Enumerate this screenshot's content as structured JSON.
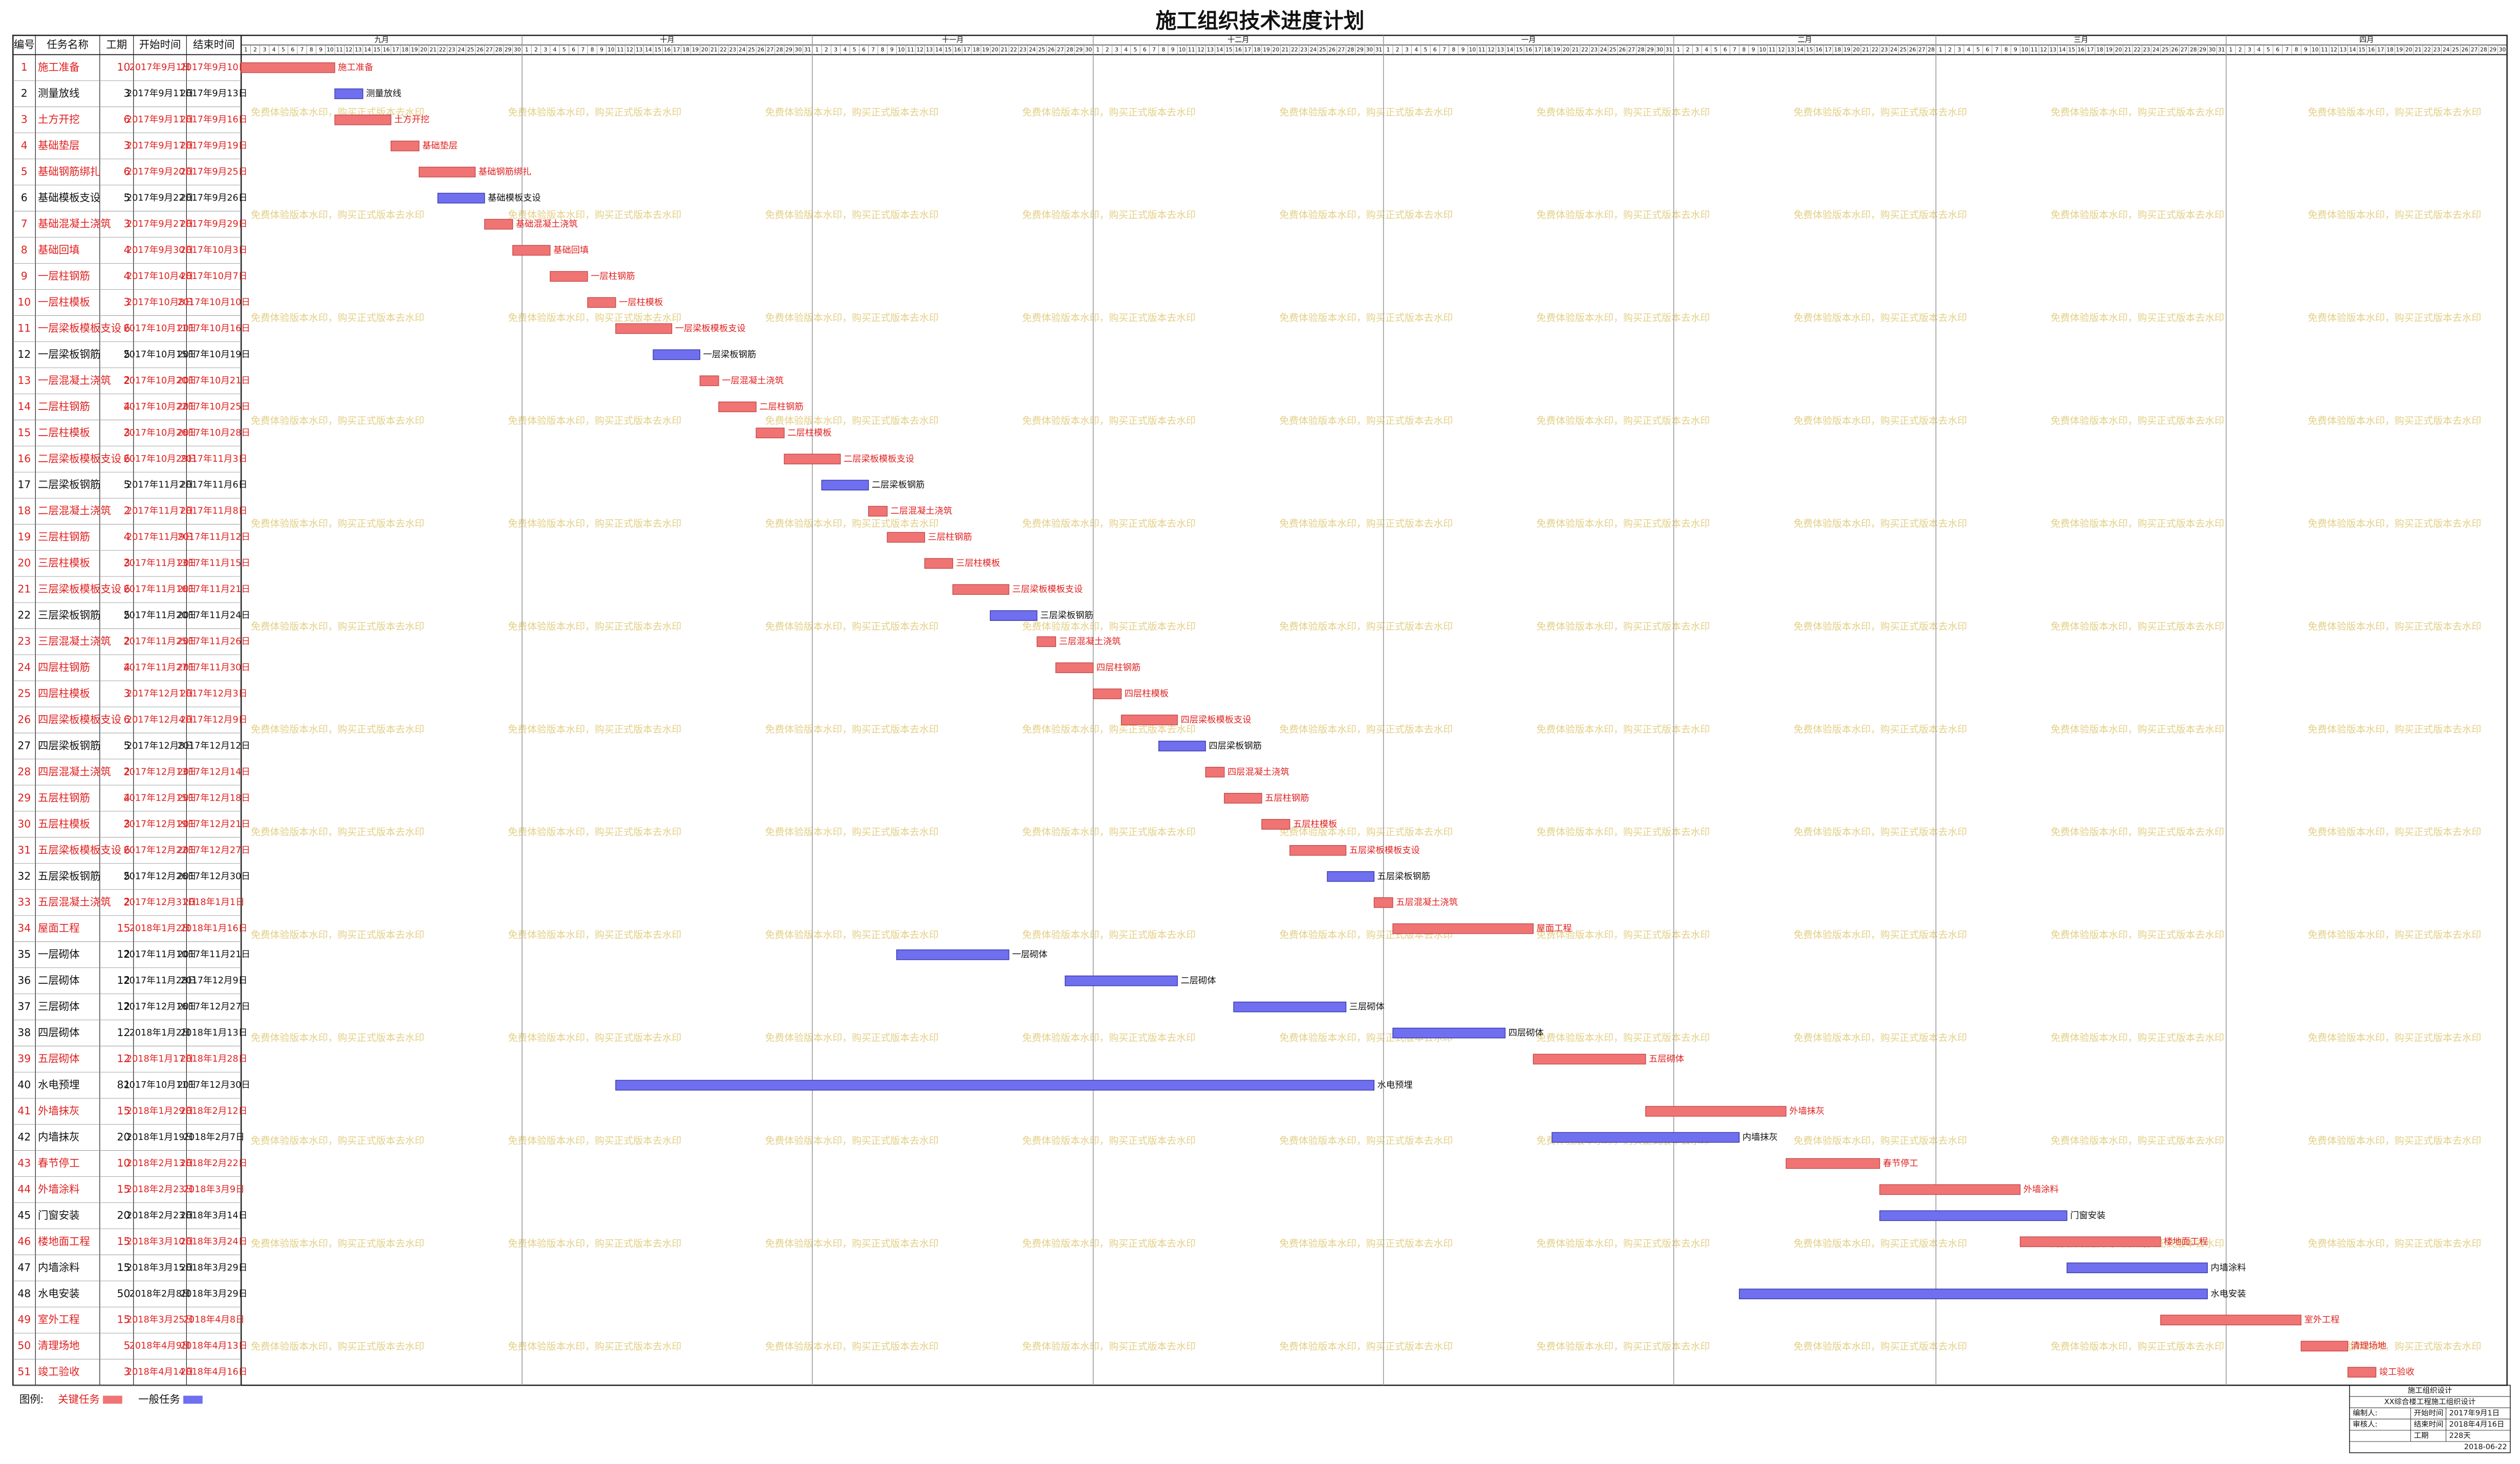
{
  "chart_data": {
    "type": "gantt",
    "title": "施工组织技术进度计划",
    "columns": [
      "编号",
      "任务名称",
      "工期",
      "开始时间",
      "结束时间"
    ],
    "months": [
      {
        "name": "九月",
        "days": [
          1,
          2,
          3,
          4,
          5,
          6,
          7,
          8,
          9,
          10,
          11,
          12,
          13,
          14,
          15,
          16,
          17,
          18,
          19,
          20,
          21,
          22,
          23,
          24,
          25,
          26,
          27,
          28,
          29,
          30
        ]
      },
      {
        "name": "十月",
        "days": [
          1,
          2,
          3,
          4,
          5,
          6,
          7,
          8,
          9,
          10,
          11,
          12,
          13,
          14,
          15,
          16,
          17,
          18,
          19,
          20,
          21,
          22,
          23,
          24,
          25,
          26,
          27,
          28,
          29,
          30,
          31
        ]
      },
      {
        "name": "十一月",
        "days": [
          1,
          2,
          3,
          4,
          5,
          6,
          7,
          8,
          9,
          10,
          11,
          12,
          13,
          14,
          15,
          16,
          17,
          18,
          19,
          20,
          21,
          22,
          23,
          24,
          25,
          26,
          27,
          28,
          29,
          30
        ]
      },
      {
        "name": "十二月",
        "days": [
          1,
          2,
          3,
          4,
          5,
          6,
          7,
          8,
          9,
          10,
          11,
          12,
          13,
          14,
          15,
          16,
          17,
          18,
          19,
          20,
          21,
          22,
          23,
          24,
          25,
          26,
          27,
          28,
          29,
          30,
          31
        ]
      },
      {
        "name": "一月",
        "days": [
          1,
          2,
          3,
          4,
          5,
          6,
          7,
          8,
          9,
          10,
          11,
          12,
          13,
          14,
          15,
          16,
          17,
          18,
          19,
          20,
          21,
          22,
          23,
          24,
          25,
          26,
          27,
          28,
          29,
          30,
          31
        ]
      },
      {
        "name": "二月",
        "days": [
          1,
          2,
          3,
          4,
          5,
          6,
          7,
          8,
          9,
          10,
          11,
          12,
          13,
          14,
          15,
          16,
          17,
          18,
          19,
          20,
          21,
          22,
          23,
          24,
          25,
          26,
          27,
          28
        ]
      },
      {
        "name": "三月",
        "days": [
          1,
          2,
          3,
          4,
          5,
          6,
          7,
          8,
          9,
          10,
          11,
          12,
          13,
          14,
          15,
          16,
          17,
          18,
          19,
          20,
          21,
          22,
          23,
          24,
          25,
          26,
          27,
          28,
          29,
          30,
          31
        ]
      },
      {
        "name": "四月",
        "days": [
          1,
          2,
          3,
          4,
          5,
          6,
          7,
          8,
          9,
          10,
          11,
          12,
          13,
          14,
          15,
          16,
          17,
          18,
          19,
          20,
          21,
          22,
          23,
          24,
          25,
          26,
          27,
          28,
          29,
          30
        ]
      }
    ],
    "legend": {
      "label": "图例:",
      "critical": {
        "name": "关键任务",
        "color": "#f07474"
      },
      "normal": {
        "name": "一般任务",
        "color": "#6f6ff0"
      }
    },
    "tasks": [
      {
        "id": 1,
        "name": "施工准备",
        "duration": 10,
        "start": "2017年9月1日",
        "end": "2017年9月10日",
        "critical": true
      },
      {
        "id": 2,
        "name": "测量放线",
        "duration": 3,
        "start": "2017年9月11日",
        "end": "2017年9月13日",
        "critical": false
      },
      {
        "id": 3,
        "name": "土方开挖",
        "duration": 6,
        "start": "2017年9月11日",
        "end": "2017年9月16日",
        "critical": true
      },
      {
        "id": 4,
        "name": "基础垫层",
        "duration": 3,
        "start": "2017年9月17日",
        "end": "2017年9月19日",
        "critical": true
      },
      {
        "id": 5,
        "name": "基础钢筋绑扎",
        "duration": 6,
        "start": "2017年9月20日",
        "end": "2017年9月25日",
        "critical": true
      },
      {
        "id": 6,
        "name": "基础模板支设",
        "duration": 5,
        "start": "2017年9月22日",
        "end": "2017年9月26日",
        "critical": false
      },
      {
        "id": 7,
        "name": "基础混凝土浇筑",
        "duration": 3,
        "start": "2017年9月27日",
        "end": "2017年9月29日",
        "critical": true
      },
      {
        "id": 8,
        "name": "基础回填",
        "duration": 4,
        "start": "2017年9月30日",
        "end": "2017年10月3日",
        "critical": true
      },
      {
        "id": 9,
        "name": "一层柱钢筋",
        "duration": 4,
        "start": "2017年10月4日",
        "end": "2017年10月7日",
        "critical": true
      },
      {
        "id": 10,
        "name": "一层柱模板",
        "duration": 3,
        "start": "2017年10月8日",
        "end": "2017年10月10日",
        "critical": true
      },
      {
        "id": 11,
        "name": "一层梁板模板支设",
        "duration": 6,
        "start": "2017年10月11日",
        "end": "2017年10月16日",
        "critical": true
      },
      {
        "id": 12,
        "name": "一层梁板钢筋",
        "duration": 5,
        "start": "2017年10月15日",
        "end": "2017年10月19日",
        "critical": false
      },
      {
        "id": 13,
        "name": "一层混凝土浇筑",
        "duration": 2,
        "start": "2017年10月20日",
        "end": "2017年10月21日",
        "critical": true
      },
      {
        "id": 14,
        "name": "二层柱钢筋",
        "duration": 4,
        "start": "2017年10月22日",
        "end": "2017年10月25日",
        "critical": true
      },
      {
        "id": 15,
        "name": "二层柱模板",
        "duration": 3,
        "start": "2017年10月26日",
        "end": "2017年10月28日",
        "critical": true
      },
      {
        "id": 16,
        "name": "二层梁板模板支设",
        "duration": 6,
        "start": "2017年10月29日",
        "end": "2017年11月3日",
        "critical": true
      },
      {
        "id": 17,
        "name": "二层梁板钢筋",
        "duration": 5,
        "start": "2017年11月2日",
        "end": "2017年11月6日",
        "critical": false
      },
      {
        "id": 18,
        "name": "二层混凝土浇筑",
        "duration": 2,
        "start": "2017年11月7日",
        "end": "2017年11月8日",
        "critical": true
      },
      {
        "id": 19,
        "name": "三层柱钢筋",
        "duration": 4,
        "start": "2017年11月9日",
        "end": "2017年11月12日",
        "critical": true
      },
      {
        "id": 20,
        "name": "三层柱模板",
        "duration": 3,
        "start": "2017年11月13日",
        "end": "2017年11月15日",
        "critical": true
      },
      {
        "id": 21,
        "name": "三层梁板模板支设",
        "duration": 6,
        "start": "2017年11月16日",
        "end": "2017年11月21日",
        "critical": true
      },
      {
        "id": 22,
        "name": "三层梁板钢筋",
        "duration": 5,
        "start": "2017年11月20日",
        "end": "2017年11月24日",
        "critical": false
      },
      {
        "id": 23,
        "name": "三层混凝土浇筑",
        "duration": 2,
        "start": "2017年11月25日",
        "end": "2017年11月26日",
        "critical": true
      },
      {
        "id": 24,
        "name": "四层柱钢筋",
        "duration": 4,
        "start": "2017年11月27日",
        "end": "2017年11月30日",
        "critical": true
      },
      {
        "id": 25,
        "name": "四层柱模板",
        "duration": 3,
        "start": "2017年12月1日",
        "end": "2017年12月3日",
        "critical": true
      },
      {
        "id": 26,
        "name": "四层梁板模板支设",
        "duration": 6,
        "start": "2017年12月4日",
        "end": "2017年12月9日",
        "critical": true
      },
      {
        "id": 27,
        "name": "四层梁板钢筋",
        "duration": 5,
        "start": "2017年12月8日",
        "end": "2017年12月12日",
        "critical": false
      },
      {
        "id": 28,
        "name": "四层混凝土浇筑",
        "duration": 2,
        "start": "2017年12月13日",
        "end": "2017年12月14日",
        "critical": true
      },
      {
        "id": 29,
        "name": "五层柱钢筋",
        "duration": 4,
        "start": "2017年12月15日",
        "end": "2017年12月18日",
        "critical": true
      },
      {
        "id": 30,
        "name": "五层柱模板",
        "duration": 3,
        "start": "2017年12月19日",
        "end": "2017年12月21日",
        "critical": true
      },
      {
        "id": 31,
        "name": "五层梁板模板支设",
        "duration": 6,
        "start": "2017年12月22日",
        "end": "2017年12月27日",
        "critical": true
      },
      {
        "id": 32,
        "name": "五层梁板钢筋",
        "duration": 5,
        "start": "2017年12月26日",
        "end": "2017年12月30日",
        "critical": false
      },
      {
        "id": 33,
        "name": "五层混凝土浇筑",
        "duration": 2,
        "start": "2017年12月31日",
        "end": "2018年1月1日",
        "critical": true
      },
      {
        "id": 34,
        "name": "屋面工程",
        "duration": 15,
        "start": "2018年1月2日",
        "end": "2018年1月16日",
        "critical": true
      },
      {
        "id": 35,
        "name": "一层砌体",
        "duration": 12,
        "start": "2017年11月10日",
        "end": "2017年11月21日",
        "critical": false
      },
      {
        "id": 36,
        "name": "二层砌体",
        "duration": 12,
        "start": "2017年11月28日",
        "end": "2017年12月9日",
        "critical": false
      },
      {
        "id": 37,
        "name": "三层砌体",
        "duration": 12,
        "start": "2017年12月16日",
        "end": "2017年12月27日",
        "critical": false
      },
      {
        "id": 38,
        "name": "四层砌体",
        "duration": 12,
        "start": "2018年1月2日",
        "end": "2018年1月13日",
        "critical": false
      },
      {
        "id": 39,
        "name": "五层砌体",
        "duration": 12,
        "start": "2018年1月17日",
        "end": "2018年1月28日",
        "critical": true
      },
      {
        "id": 40,
        "name": "水电预埋",
        "duration": 81,
        "start": "2017年10月11日",
        "end": "2017年12月30日",
        "critical": false
      },
      {
        "id": 41,
        "name": "外墙抹灰",
        "duration": 15,
        "start": "2018年1月29日",
        "end": "2018年2月12日",
        "critical": true
      },
      {
        "id": 42,
        "name": "内墙抹灰",
        "duration": 20,
        "start": "2018年1月19日",
        "end": "2018年2月7日",
        "critical": false
      },
      {
        "id": 43,
        "name": "春节停工",
        "duration": 10,
        "start": "2018年2月13日",
        "end": "2018年2月22日",
        "critical": true
      },
      {
        "id": 44,
        "name": "外墙涂料",
        "duration": 15,
        "start": "2018年2月23日",
        "end": "2018年3月9日",
        "critical": true
      },
      {
        "id": 45,
        "name": "门窗安装",
        "duration": 20,
        "start": "2018年2月23日",
        "end": "2018年3月14日",
        "critical": false
      },
      {
        "id": 46,
        "name": "楼地面工程",
        "duration": 15,
        "start": "2018年3月10日",
        "end": "2018年3月24日",
        "critical": true
      },
      {
        "id": 47,
        "name": "内墙涂料",
        "duration": 15,
        "start": "2018年3月15日",
        "end": "2018年3月29日",
        "critical": false
      },
      {
        "id": 48,
        "name": "水电安装",
        "duration": 50,
        "start": "2018年2月8日",
        "end": "2018年3月29日",
        "critical": false
      },
      {
        "id": 49,
        "name": "室外工程",
        "duration": 15,
        "start": "2018年3月25日",
        "end": "2018年4月8日",
        "critical": true
      },
      {
        "id": 50,
        "name": "清理场地",
        "duration": 5,
        "start": "2018年4月9日",
        "end": "2018年4月13日",
        "critical": true
      },
      {
        "id": 51,
        "name": "竣工验收",
        "duration": 3,
        "start": "2018年4月14日",
        "end": "2018年4月16日",
        "critical": true
      }
    ]
  },
  "title_block": {
    "heading": "施工组织设计",
    "project": "XX综合楼工程施工组织设计",
    "prepared_label": "编制人:",
    "reviewed_label": "审核人:",
    "start_label": "开始时间",
    "start": "2017年9月1日",
    "end_label": "结束时间",
    "end": "2018年4月16日",
    "duration_label": "工期",
    "duration": "228天",
    "date": "2018-06-22"
  },
  "watermark": "免费体验版本水印，购买正式版本去水印"
}
